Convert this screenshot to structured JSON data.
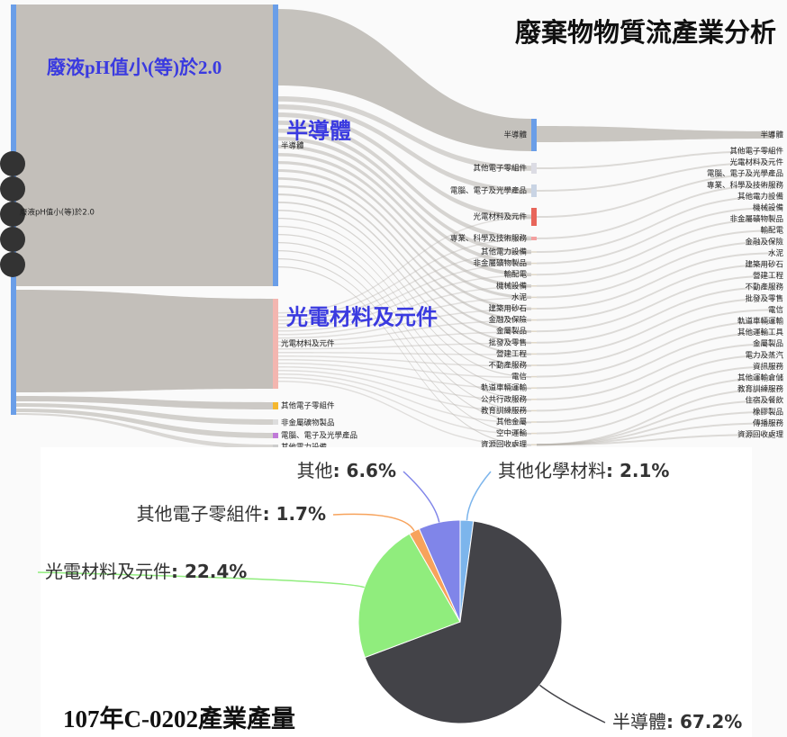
{
  "title": "廢棄物物質流產業分析",
  "sankey": {
    "highlight_labels": [
      "廢液pH值小(等)於2.0",
      "半導體",
      "光電材料及元件"
    ],
    "column1": [
      "廢液pH值小(等)於2.0"
    ],
    "column2": [
      "半導體",
      "光電材料及元件",
      "其他電子零組件",
      "非金屬礦物製品",
      "電腦、電子及光學產品",
      "其他電力設備"
    ],
    "column3": [
      "半導體",
      "其他電子零組件",
      "電腦、電子及光學產品",
      "光電材料及元件",
      "專業、科學及技術服務",
      "其他電力設備",
      "非金屬礦物製品",
      "輸配電",
      "機械設備",
      "水泥",
      "建築用砂石",
      "金融及保險",
      "金屬製品",
      "批發及零售",
      "營建工程",
      "不動產服務",
      "電信",
      "軌道車輛運輸",
      "公共行政服務",
      "教育訓練服務",
      "其他金屬",
      "空中運輸",
      "資源回收處理"
    ],
    "column4": [
      "半導體",
      "其他電子零組件",
      "光電材料及元件",
      "電腦、電子及光學產品",
      "專業、科學及技術服務",
      "其他電力設備",
      "機械設備",
      "非金屬礦物製品",
      "輸配電",
      "金融及保險",
      "水泥",
      "建築用砂石",
      "營建工程",
      "不動產服務",
      "批發及零售",
      "電信",
      "軌道車輛運輸",
      "其他運輸工具",
      "金屬製品",
      "電力及蒸汽",
      "資訊服務",
      "其他運輸倉儲",
      "教育訓練服務",
      "住宿及餐飲",
      "橡膠製品",
      "傳播服務",
      "資源回收處理"
    ]
  },
  "chart_data": {
    "type": "pie",
    "title": "107年C-0202產業產量",
    "categories": [
      "其他化學材料",
      "半導體",
      "光電材料及元件",
      "其他電子零組件",
      "其他"
    ],
    "values": [
      2.1,
      67.2,
      22.4,
      1.7,
      6.6
    ],
    "value_labels": [
      ": 2.1%",
      ": 67.2%",
      ": 22.4%",
      ": 1.7%",
      ": 6.6%"
    ],
    "colors": [
      "#7cb5ec",
      "#434348",
      "#90ed7d",
      "#f7a35c",
      "#8085e9"
    ]
  }
}
